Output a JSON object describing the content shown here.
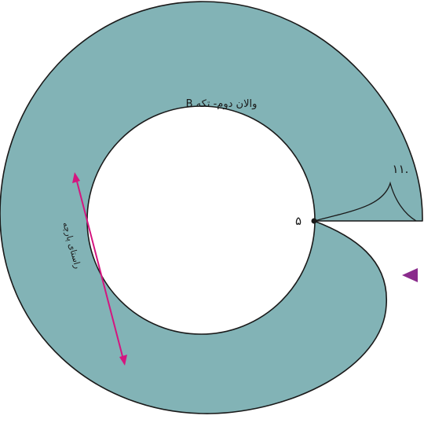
{
  "pattern": {
    "piece_label": "والان دوم- تکه B",
    "point_label": "۵",
    "length_label": "۱۱.",
    "grainline_label": "راستای پارچه"
  },
  "colors": {
    "fabric_fill": "#82b3b6",
    "outline": "#1a1a1a",
    "grainline": "#d4157f",
    "marker": "#8a2b8c",
    "background": "#ffffff"
  }
}
